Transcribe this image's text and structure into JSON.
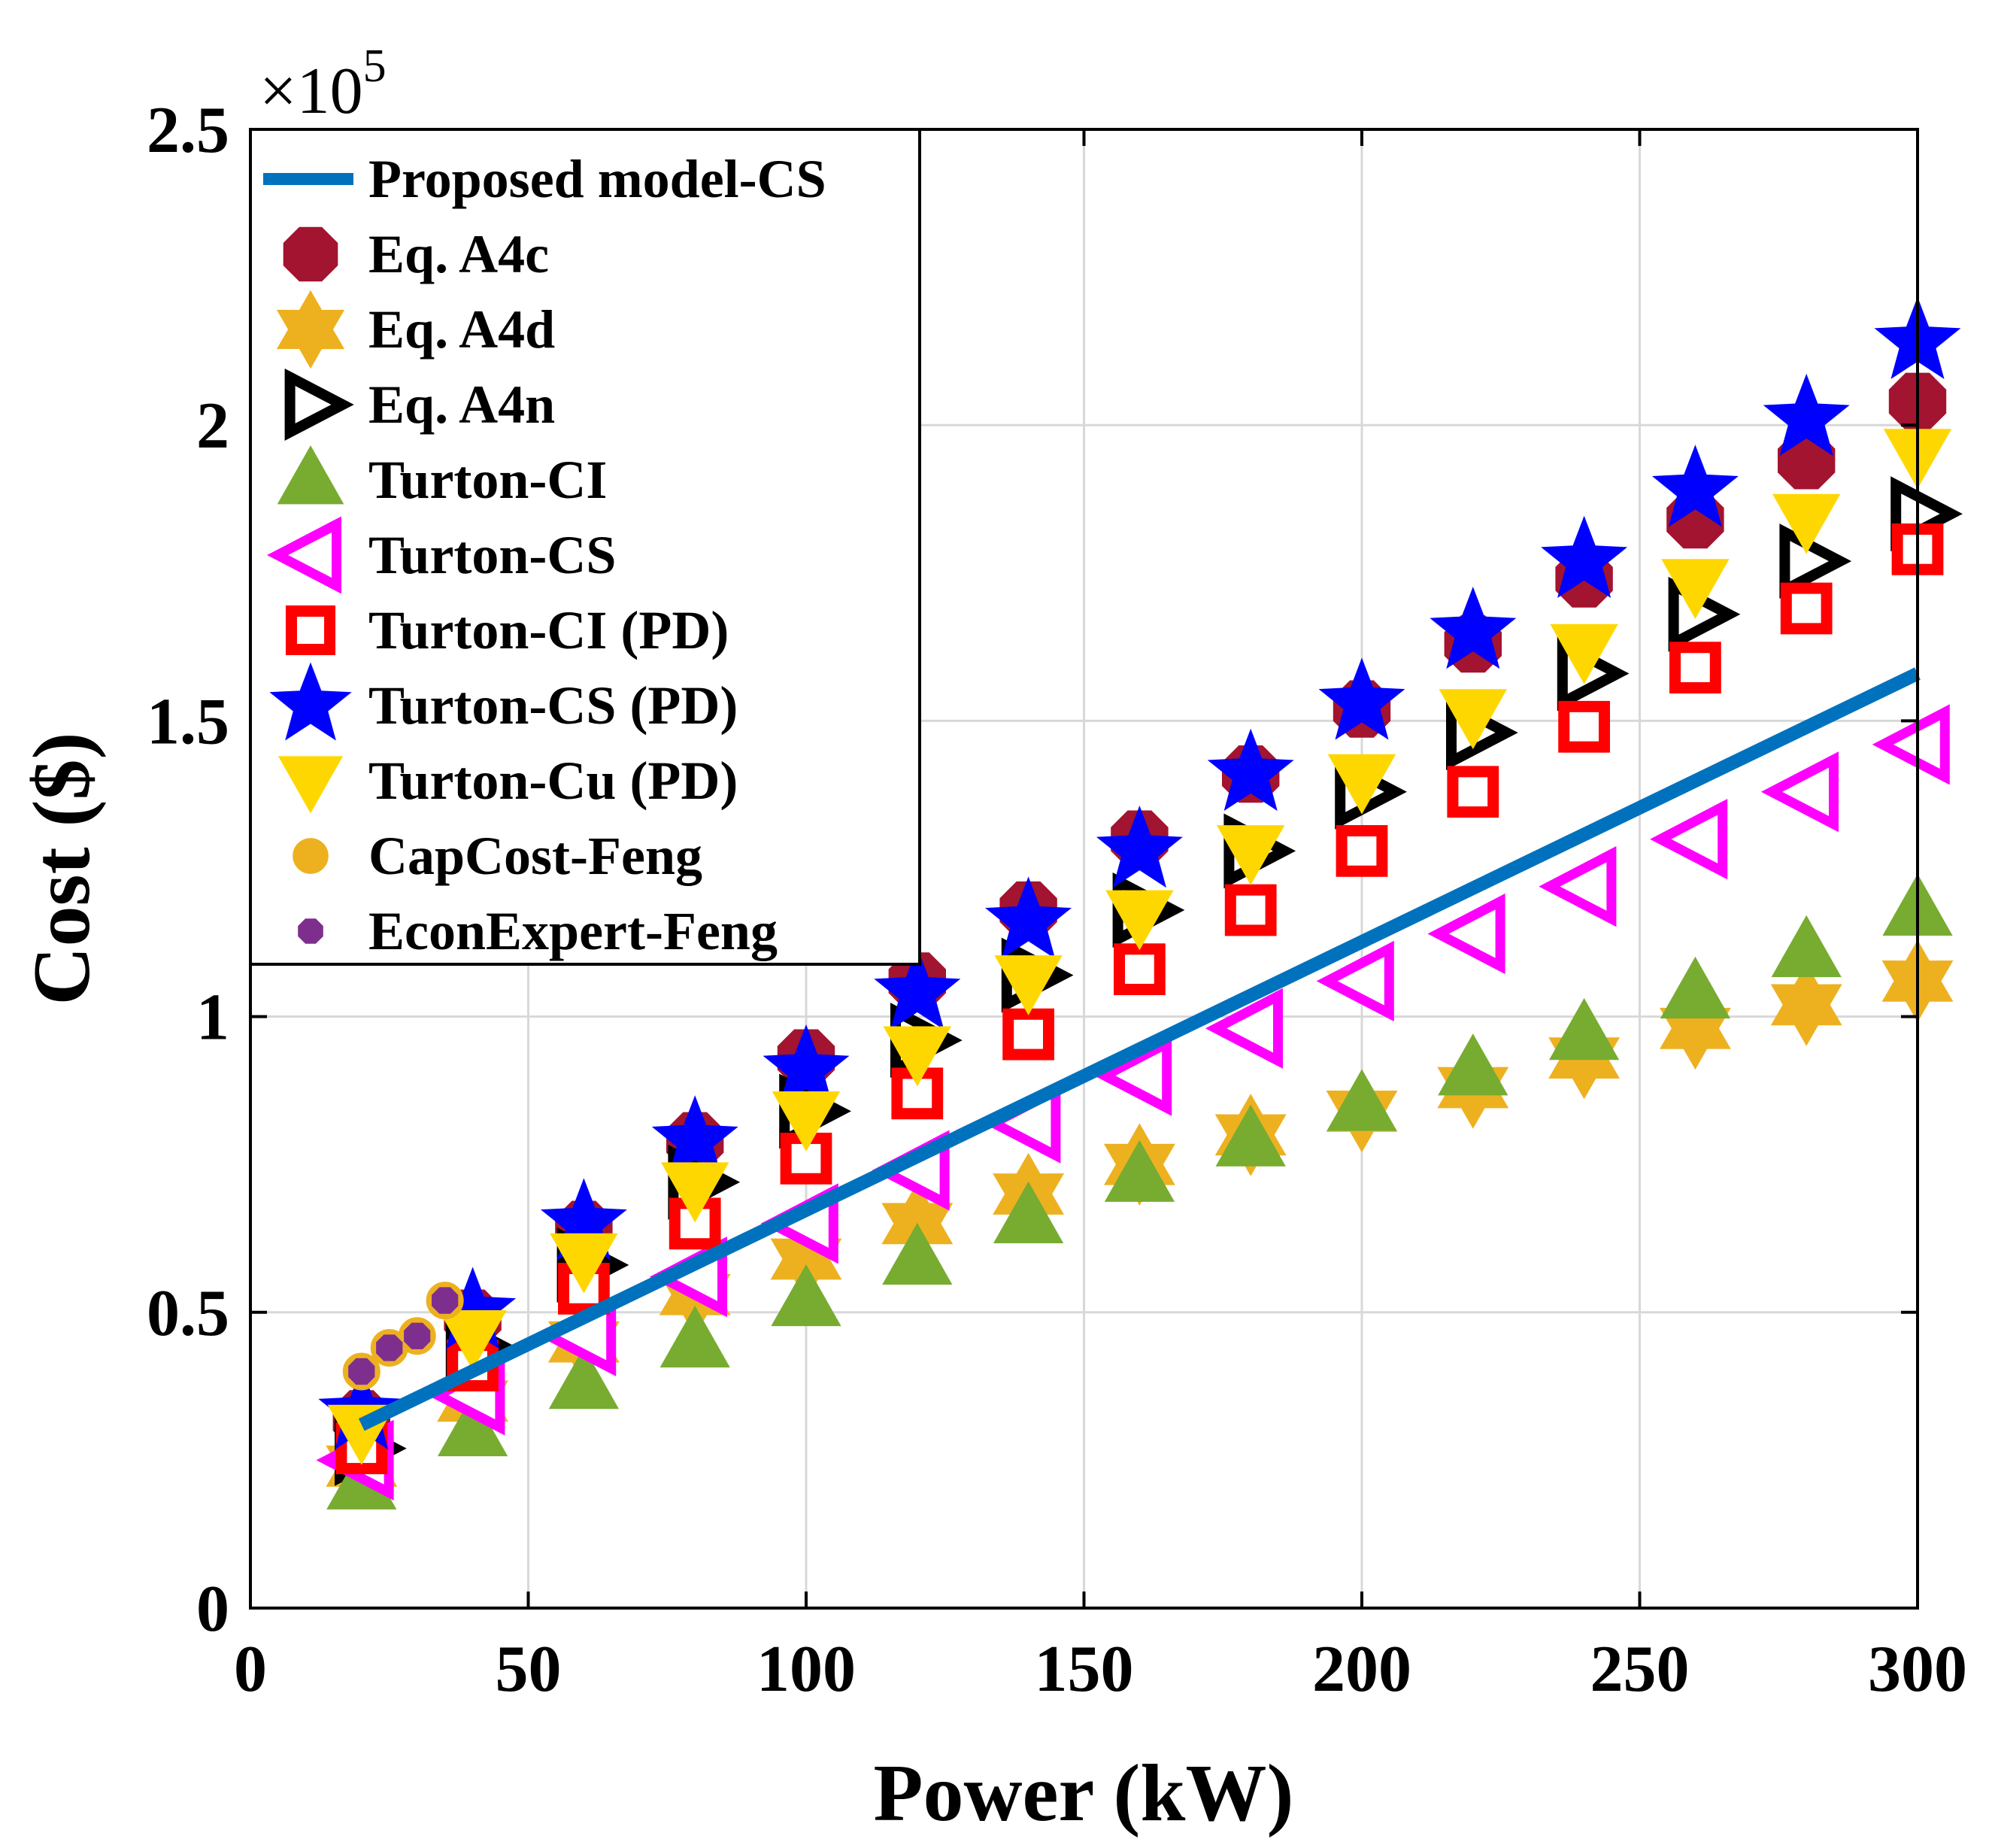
{
  "chart_data": {
    "type": "scatter",
    "xlabel": "Power (kW)",
    "ylabel": "Cost ($)",
    "y_multiplier_base": "×10",
    "y_multiplier_exp": "5",
    "xlim": [
      0,
      300
    ],
    "ylim": [
      0,
      2.5
    ],
    "xticks": [
      0,
      50,
      100,
      150,
      200,
      250,
      300
    ],
    "xtick_labels": [
      "0",
      "50",
      "100",
      "150",
      "200",
      "250",
      "300"
    ],
    "yticks": [
      0,
      0.5,
      1,
      1.5,
      2,
      2.5
    ],
    "ytick_labels": [
      "0",
      "0.5",
      "1",
      "1.5",
      "2",
      "2.5"
    ],
    "grid": true,
    "legend_position": "top-left",
    "series": [
      {
        "name": "Proposed model-CS",
        "style": "line",
        "color": "#0072BD",
        "x": [
          20,
          300
        ],
        "y": [
          0.31,
          1.58
        ]
      },
      {
        "name": "Eq. A4c",
        "style": "octagon",
        "color": "#A2142F",
        "x": [
          20,
          40,
          60,
          80,
          100,
          120,
          140,
          160,
          180,
          200,
          220,
          240,
          260,
          280,
          300
        ],
        "y": [
          0.32,
          0.49,
          0.64,
          0.79,
          0.93,
          1.06,
          1.18,
          1.3,
          1.41,
          1.52,
          1.63,
          1.74,
          1.84,
          1.94,
          2.04
        ]
      },
      {
        "name": "Eq. A4d",
        "style": "hexagram",
        "color": "#EDB120",
        "x": [
          20,
          40,
          60,
          80,
          100,
          120,
          140,
          160,
          180,
          200,
          220,
          240,
          260,
          280,
          300
        ],
        "y": [
          0.24,
          0.35,
          0.45,
          0.53,
          0.59,
          0.65,
          0.7,
          0.75,
          0.8,
          0.84,
          0.88,
          0.93,
          0.98,
          1.02,
          1.06
        ]
      },
      {
        "name": "Eq. A4n",
        "style": "triangle-right",
        "color": "#000000",
        "x": [
          20,
          40,
          60,
          80,
          100,
          120,
          140,
          160,
          180,
          200,
          220,
          240,
          260,
          280,
          300
        ],
        "y": [
          0.27,
          0.44,
          0.58,
          0.72,
          0.84,
          0.96,
          1.07,
          1.18,
          1.28,
          1.38,
          1.48,
          1.58,
          1.68,
          1.77,
          1.85
        ]
      },
      {
        "name": "Turton-CI",
        "style": "triangle-up",
        "color": "#77AC30",
        "x": [
          20,
          40,
          60,
          80,
          100,
          120,
          140,
          160,
          180,
          200,
          220,
          240,
          260,
          280,
          300
        ],
        "y": [
          0.21,
          0.3,
          0.38,
          0.45,
          0.52,
          0.59,
          0.66,
          0.73,
          0.79,
          0.85,
          0.91,
          0.97,
          1.04,
          1.11,
          1.18
        ]
      },
      {
        "name": "Turton-CS",
        "style": "triangle-left",
        "color": "#FF00FF",
        "x": [
          20,
          40,
          60,
          80,
          100,
          120,
          140,
          160,
          180,
          200,
          220,
          240,
          260,
          280,
          300
        ],
        "y": [
          0.25,
          0.36,
          0.46,
          0.56,
          0.65,
          0.74,
          0.82,
          0.9,
          0.98,
          1.06,
          1.14,
          1.22,
          1.3,
          1.38,
          1.46
        ]
      },
      {
        "name": "Turton-CI (PD)",
        "style": "square",
        "color": "#FF0000",
        "x": [
          20,
          40,
          60,
          80,
          100,
          120,
          140,
          160,
          180,
          200,
          220,
          240,
          260,
          280,
          300
        ],
        "y": [
          0.27,
          0.41,
          0.54,
          0.65,
          0.76,
          0.87,
          0.97,
          1.08,
          1.18,
          1.28,
          1.38,
          1.49,
          1.59,
          1.69,
          1.79
        ]
      },
      {
        "name": "Turton-CS (PD)",
        "style": "star",
        "color": "#0000FF",
        "x": [
          20,
          40,
          60,
          80,
          100,
          120,
          140,
          160,
          180,
          200,
          220,
          240,
          260,
          280,
          300
        ],
        "y": [
          0.33,
          0.5,
          0.65,
          0.79,
          0.91,
          1.04,
          1.16,
          1.28,
          1.41,
          1.53,
          1.65,
          1.77,
          1.89,
          2.01,
          2.14
        ]
      },
      {
        "name": "Turton-Cu (PD)",
        "style": "triangle-down",
        "color": "#FFD700",
        "x": [
          20,
          40,
          60,
          80,
          100,
          120,
          140,
          160,
          180,
          200,
          220,
          240,
          260,
          280,
          300
        ],
        "y": [
          0.3,
          0.46,
          0.59,
          0.71,
          0.83,
          0.94,
          1.06,
          1.17,
          1.28,
          1.4,
          1.51,
          1.62,
          1.73,
          1.84,
          1.95
        ]
      },
      {
        "name": "CapCost-Feng",
        "style": "circle",
        "color": "#EDB120",
        "x": [
          20,
          25,
          30,
          35
        ],
        "y": [
          0.4,
          0.44,
          0.46,
          0.52
        ]
      },
      {
        "name": "EconExpert-Feng",
        "style": "diamond-octagon",
        "color": "#7E2F8E",
        "x": [
          20,
          25,
          30,
          35
        ],
        "y": [
          0.4,
          0.44,
          0.46,
          0.52
        ]
      }
    ]
  }
}
